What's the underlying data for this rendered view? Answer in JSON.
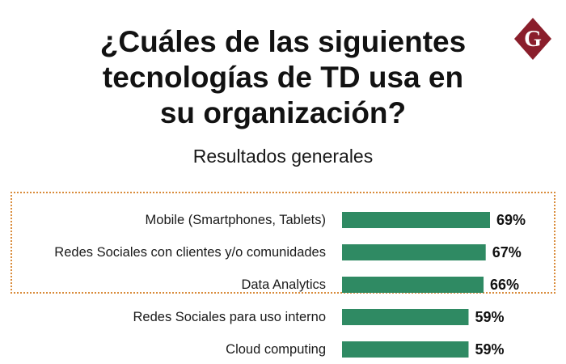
{
  "chart_data": {
    "type": "bar",
    "orientation": "horizontal",
    "title_lines": [
      "¿Cuáles de las siguientes",
      "tecnologías de TD usa en",
      "su organización?"
    ],
    "subtitle": "Resultados generales",
    "categories": [
      "Mobile (Smartphones, Tablets)",
      "Redes Sociales con clientes y/o comunidades",
      "Data Analytics",
      "Redes Sociales para uso interno",
      "Cloud computing"
    ],
    "values": [
      69,
      67,
      66,
      59,
      59
    ],
    "value_labels": [
      "69%",
      "67%",
      "66%",
      "59%",
      "59%"
    ],
    "unit": "%",
    "highlighted": [
      "Mobile (Smartphones, Tablets)",
      "Redes Sociales con clientes y/o comunidades",
      "Data Analytics"
    ],
    "grid": false,
    "legend": "none"
  },
  "logo": {
    "letter": "G",
    "color": "#8a1e2b"
  },
  "colors": {
    "bar": "#2f8a63",
    "highlight_border": "#d98b3a",
    "text": "#111111"
  }
}
